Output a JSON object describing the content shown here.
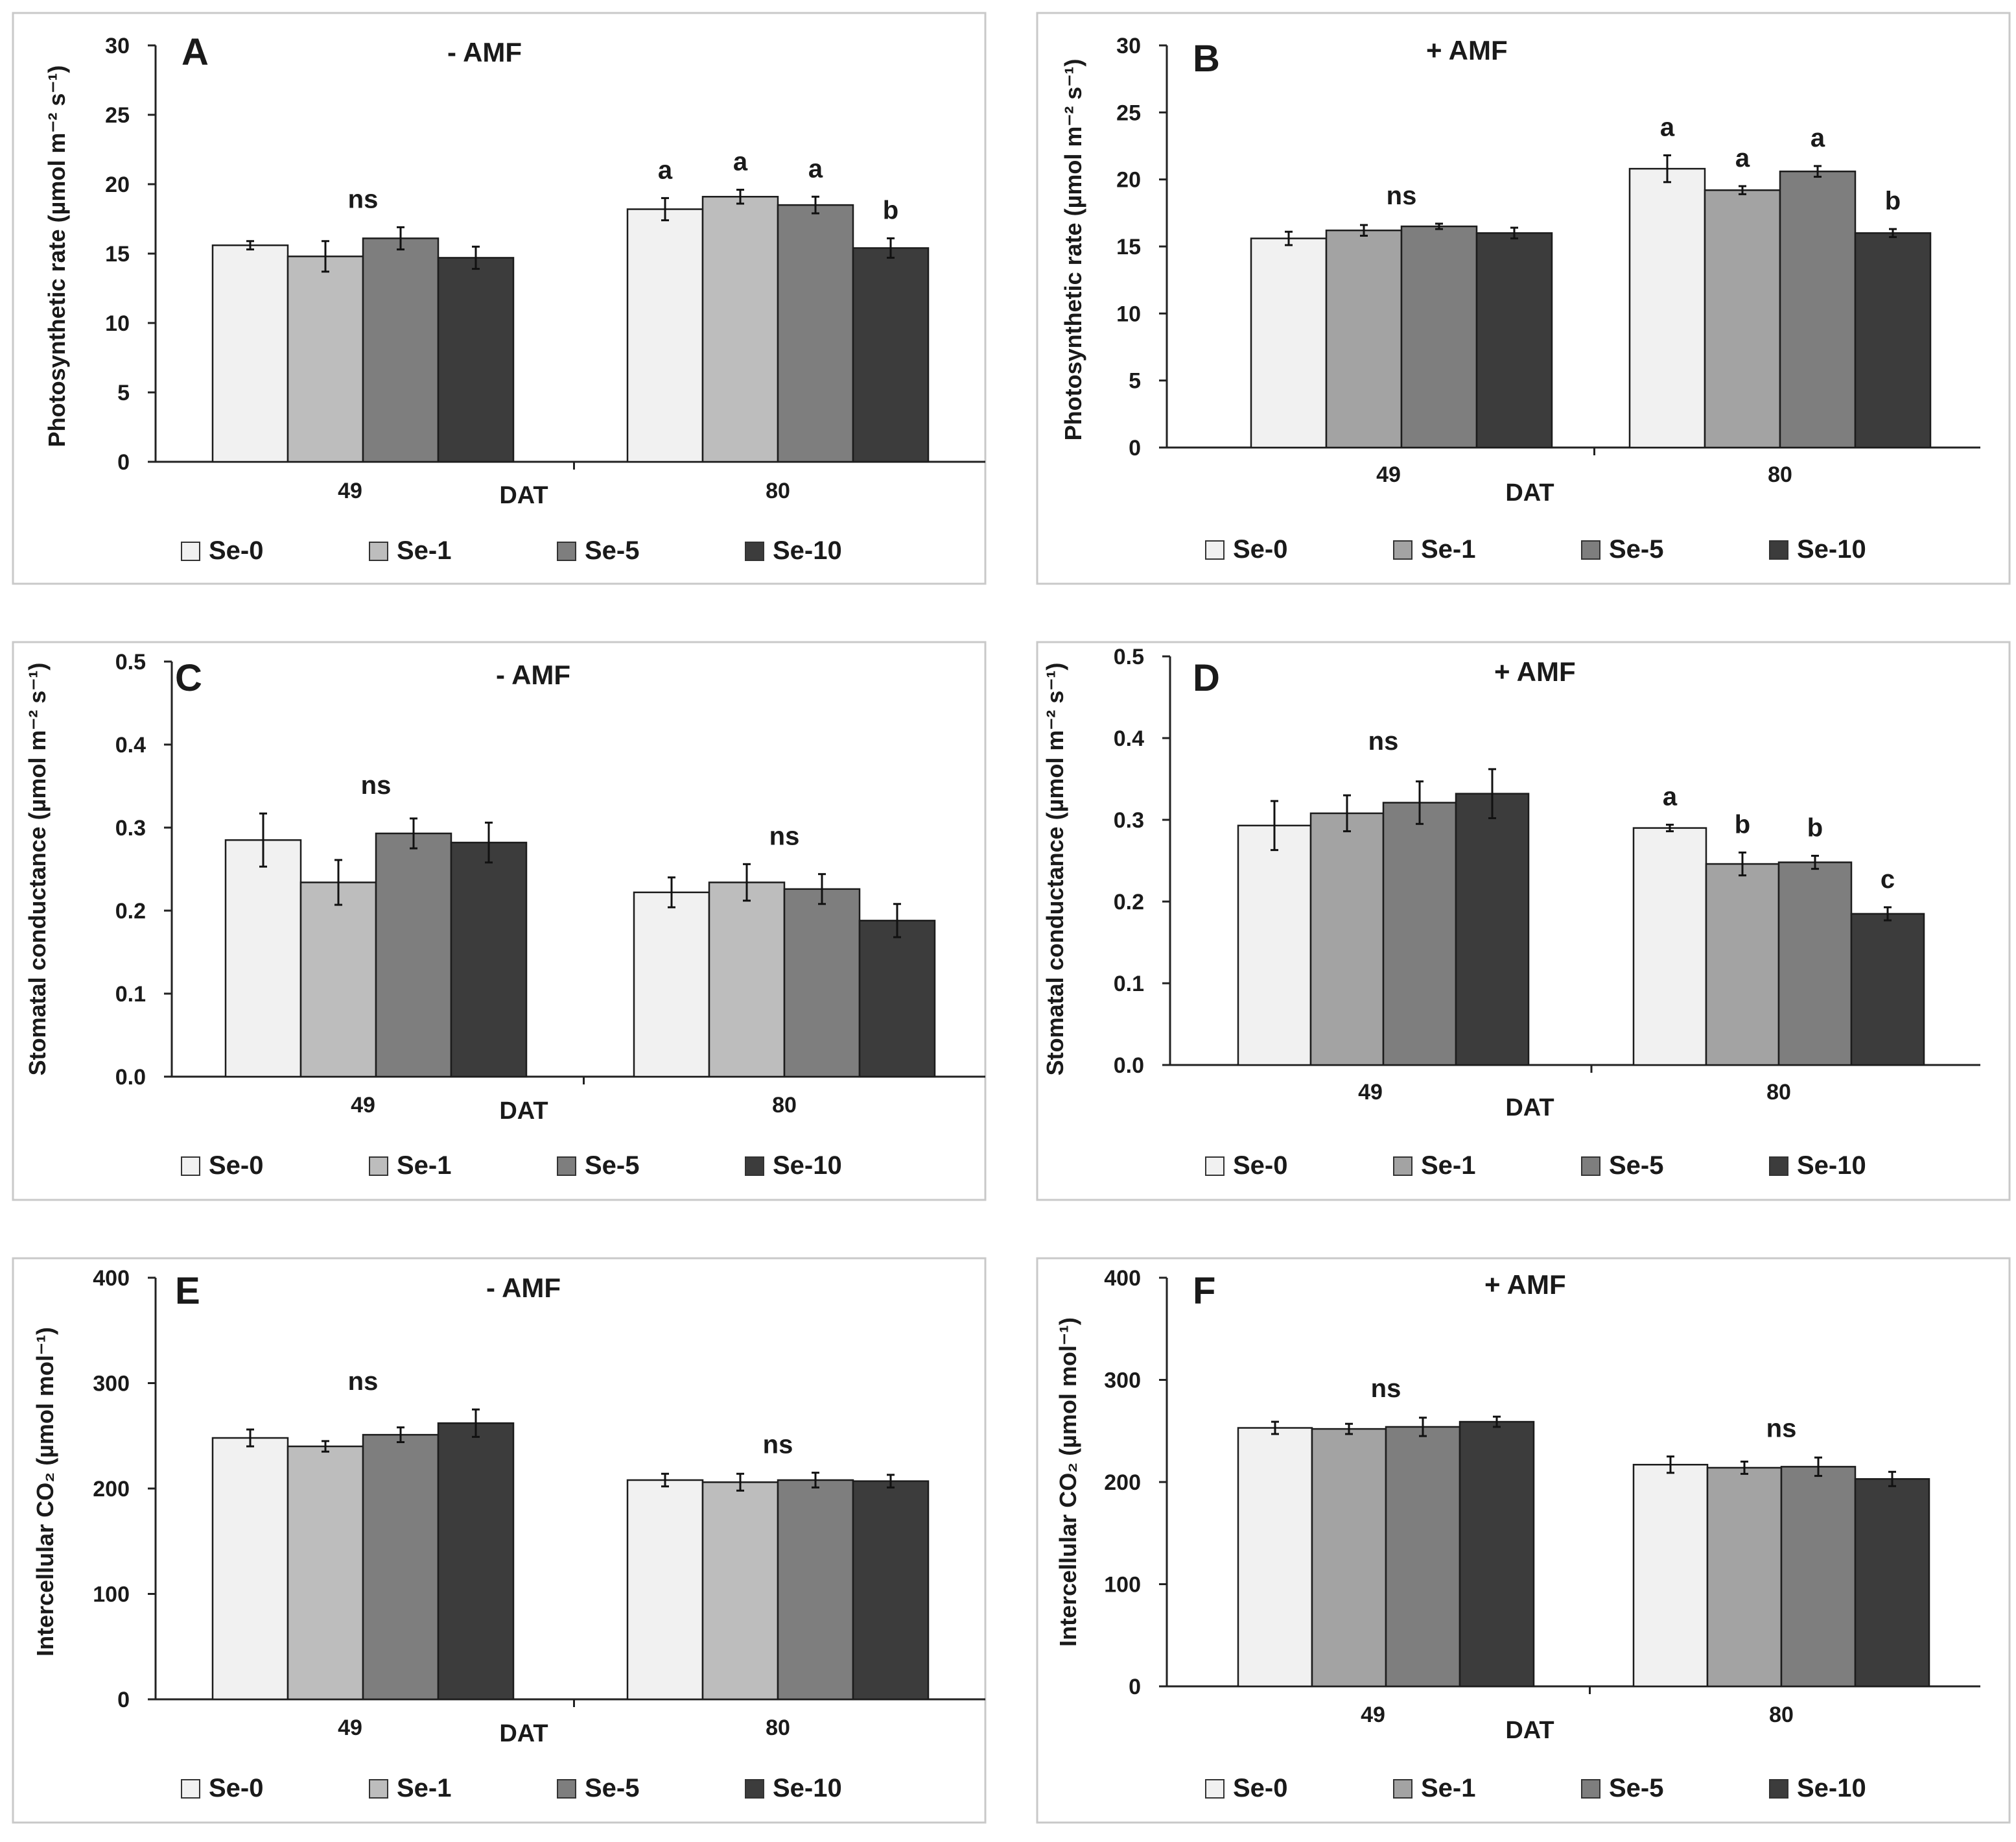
{
  "figure": {
    "legend_items": [
      "Se-0",
      "Se-1",
      "Se-5",
      "Se-10"
    ]
  },
  "series_colors": [
    "#f1f1f1",
    "#bdbdbd",
    "#7e7e7e",
    "#3c3c3c"
  ],
  "series_colors_plus_amf": [
    "#f1f1f1",
    "#a3a3a3",
    "#7e7e7e",
    "#3c3c3c"
  ],
  "chart_data": [
    {
      "panel": "A",
      "type": "bar",
      "title": "-  AMF",
      "xlabel": "DAT",
      "ylabel": "Photosynthetic rate (µmol m⁻² s⁻¹)",
      "categories": [
        "49",
        "80"
      ],
      "yticks": [
        "0",
        "5",
        "10",
        "15",
        "20",
        "25",
        "30"
      ],
      "ylim": [
        0,
        30
      ],
      "series": [
        {
          "name": "Se-0",
          "values": [
            15.6,
            18.2
          ],
          "errors": [
            0.3,
            0.8
          ]
        },
        {
          "name": "Se-1",
          "values": [
            14.8,
            19.1
          ],
          "errors": [
            1.1,
            0.5
          ]
        },
        {
          "name": "Se-5",
          "values": [
            16.1,
            18.5
          ],
          "errors": [
            0.8,
            0.6
          ]
        },
        {
          "name": "Se-10",
          "values": [
            14.7,
            15.4
          ],
          "errors": [
            0.8,
            0.7
          ]
        }
      ],
      "annotations": [
        {
          "category": "49",
          "labels": [
            "ns"
          ]
        },
        {
          "category": "80",
          "labels": [
            "a",
            "a",
            "a",
            "b"
          ]
        }
      ],
      "legend": [
        "Se-0",
        "Se-1",
        "Se-5",
        "Se-10"
      ]
    },
    {
      "panel": "B",
      "type": "bar",
      "title": "+  AMF",
      "xlabel": "DAT",
      "ylabel": "Photosynthetic rate (µmol m⁻² s⁻¹)",
      "categories": [
        "49",
        "80"
      ],
      "yticks": [
        "0",
        "5",
        "10",
        "15",
        "20",
        "25",
        "30"
      ],
      "ylim": [
        0,
        30
      ],
      "series": [
        {
          "name": "Se-0",
          "values": [
            15.6,
            20.8
          ],
          "errors": [
            0.5,
            1.0
          ]
        },
        {
          "name": "Se-1",
          "values": [
            16.2,
            19.2
          ],
          "errors": [
            0.4,
            0.3
          ]
        },
        {
          "name": "Se-5",
          "values": [
            16.5,
            20.6
          ],
          "errors": [
            0.2,
            0.4
          ]
        },
        {
          "name": "Se-10",
          "values": [
            16.0,
            16.0
          ],
          "errors": [
            0.4,
            0.3
          ]
        }
      ],
      "annotations": [
        {
          "category": "49",
          "labels": [
            "ns"
          ]
        },
        {
          "category": "80",
          "labels": [
            "a",
            "a",
            "a",
            "b"
          ]
        }
      ],
      "legend": [
        "Se-0",
        "Se-1",
        "Se-5",
        "Se-10"
      ]
    },
    {
      "panel": "C",
      "type": "bar",
      "title": "-  AMF",
      "xlabel": "DAT",
      "ylabel": "Stomatal conductance (µmol m⁻² s⁻¹)",
      "categories": [
        "49",
        "80"
      ],
      "yticks": [
        "0.0",
        "0.1",
        "0.2",
        "0.3",
        "0.4",
        "0.5"
      ],
      "ylim": [
        0,
        0.5
      ],
      "series": [
        {
          "name": "Se-0",
          "values": [
            0.285,
            0.222
          ],
          "errors": [
            0.032,
            0.018
          ]
        },
        {
          "name": "Se-1",
          "values": [
            0.234,
            0.234
          ],
          "errors": [
            0.027,
            0.022
          ]
        },
        {
          "name": "Se-5",
          "values": [
            0.293,
            0.226
          ],
          "errors": [
            0.018,
            0.018
          ]
        },
        {
          "name": "Se-10",
          "values": [
            0.282,
            0.188
          ],
          "errors": [
            0.024,
            0.02
          ]
        }
      ],
      "annotations": [
        {
          "category": "49",
          "labels": [
            "ns"
          ]
        },
        {
          "category": "80",
          "labels": [
            "ns"
          ]
        }
      ],
      "legend": [
        "Se-0",
        "Se-1",
        "Se-5",
        "Se-10"
      ]
    },
    {
      "panel": "D",
      "type": "bar",
      "title": "+  AMF",
      "xlabel": "DAT",
      "ylabel": "Stomatal conductance (µmol m⁻² s⁻¹)",
      "categories": [
        "49",
        "80"
      ],
      "yticks": [
        "0.0",
        "0.1",
        "0.2",
        "0.3",
        "0.4",
        "0.5"
      ],
      "ylim": [
        0,
        0.5
      ],
      "series": [
        {
          "name": "Se-0",
          "values": [
            0.293,
            0.29
          ],
          "errors": [
            0.03,
            0.004
          ]
        },
        {
          "name": "Se-1",
          "values": [
            0.308,
            0.246
          ],
          "errors": [
            0.022,
            0.014
          ]
        },
        {
          "name": "Se-5",
          "values": [
            0.321,
            0.248
          ],
          "errors": [
            0.026,
            0.008
          ]
        },
        {
          "name": "Se-10",
          "values": [
            0.332,
            0.185
          ],
          "errors": [
            0.03,
            0.008
          ]
        }
      ],
      "annotations": [
        {
          "category": "49",
          "labels": [
            "ns"
          ]
        },
        {
          "category": "80",
          "labels": [
            "a",
            "b",
            "b",
            "c"
          ]
        }
      ],
      "legend": [
        "Se-0",
        "Se-1",
        "Se-5",
        "Se-10"
      ]
    },
    {
      "panel": "E",
      "type": "bar",
      "title": "-  AMF",
      "xlabel": "DAT",
      "ylabel": "Intercellular CO₂ (µmol mol⁻¹)",
      "categories": [
        "49",
        "80"
      ],
      "yticks": [
        "0",
        "100",
        "200",
        "300",
        "400"
      ],
      "ylim": [
        0,
        400
      ],
      "series": [
        {
          "name": "Se-0",
          "values": [
            248,
            208
          ],
          "errors": [
            8,
            6
          ]
        },
        {
          "name": "Se-1",
          "values": [
            240,
            206
          ],
          "errors": [
            5,
            8
          ]
        },
        {
          "name": "Se-5",
          "values": [
            251,
            208
          ],
          "errors": [
            7,
            7
          ]
        },
        {
          "name": "Se-10",
          "values": [
            262,
            207
          ],
          "errors": [
            13,
            6
          ]
        }
      ],
      "annotations": [
        {
          "category": "49",
          "labels": [
            "ns"
          ]
        },
        {
          "category": "80",
          "labels": [
            "ns"
          ]
        }
      ],
      "legend": [
        "Se-0",
        "Se-1",
        "Se-5",
        "Se-10"
      ]
    },
    {
      "panel": "F",
      "type": "bar",
      "title": "+  AMF",
      "xlabel": "DAT",
      "ylabel": "Intercellular CO₂ (µmol mol⁻¹)",
      "categories": [
        "49",
        "80"
      ],
      "yticks": [
        "0",
        "100",
        "200",
        "300",
        "400"
      ],
      "ylim": [
        0,
        400
      ],
      "series": [
        {
          "name": "Se-0",
          "values": [
            253,
            217
          ],
          "errors": [
            6,
            8
          ]
        },
        {
          "name": "Se-1",
          "values": [
            252,
            214
          ],
          "errors": [
            5,
            6
          ]
        },
        {
          "name": "Se-5",
          "values": [
            254,
            215
          ],
          "errors": [
            9,
            9
          ]
        },
        {
          "name": "Se-10",
          "values": [
            259,
            203
          ],
          "errors": [
            5,
            7
          ]
        }
      ],
      "annotations": [
        {
          "category": "49",
          "labels": [
            "ns"
          ]
        },
        {
          "category": "80",
          "labels": [
            "ns"
          ]
        }
      ],
      "legend": [
        "Se-0",
        "Se-1",
        "Se-5",
        "Se-10"
      ]
    }
  ]
}
